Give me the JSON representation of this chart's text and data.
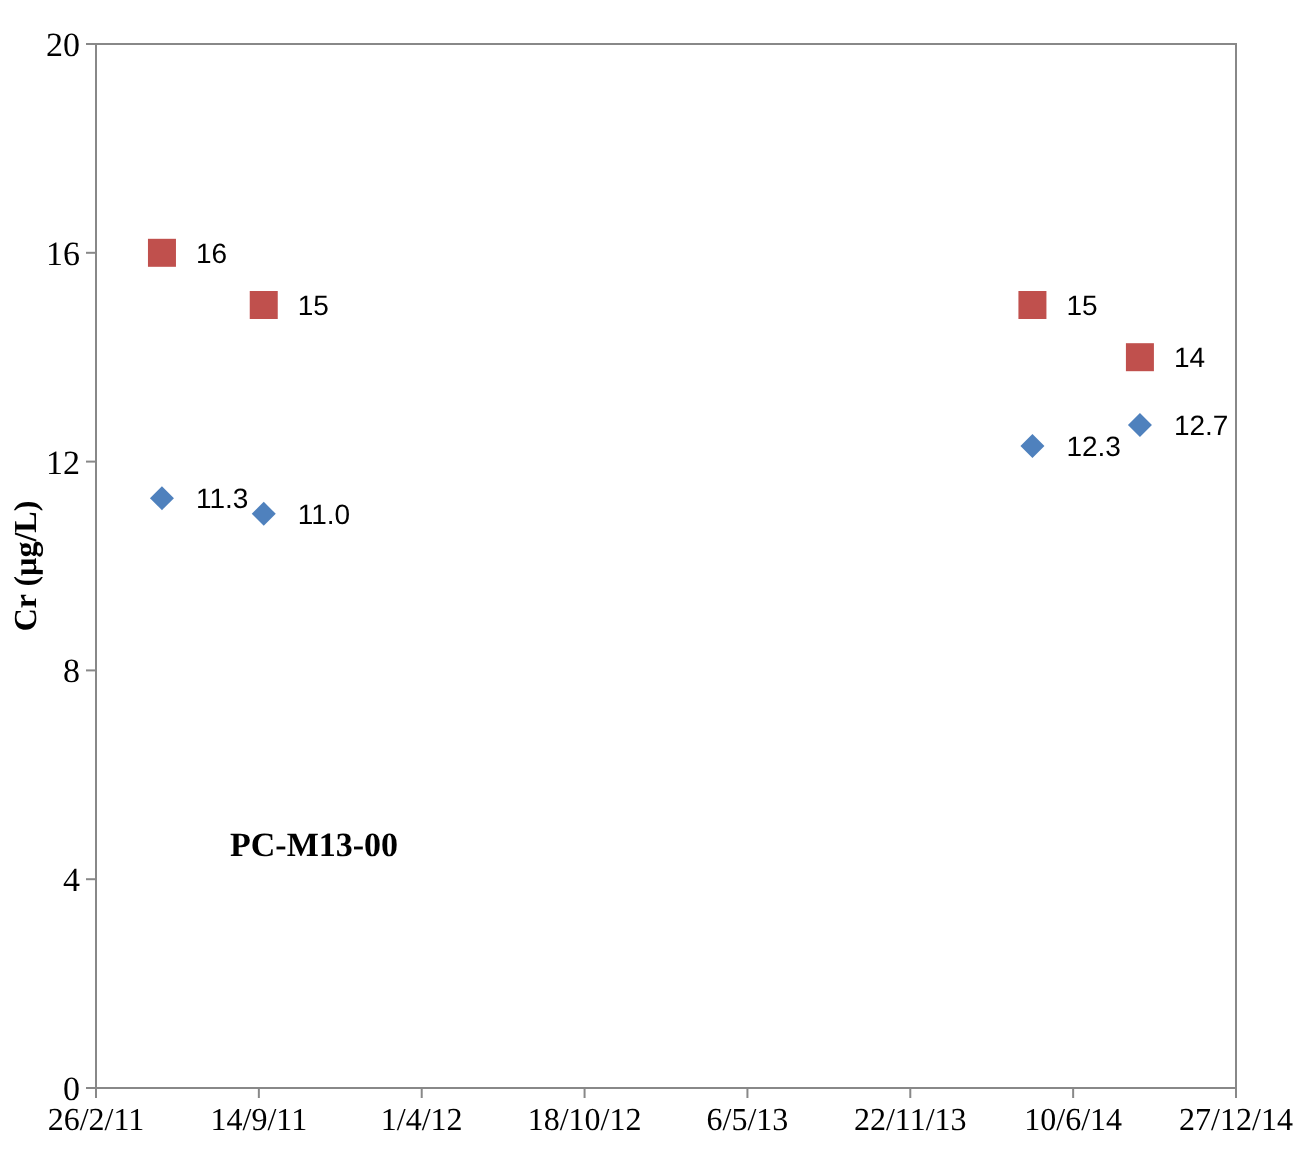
{
  "chart_data": {
    "type": "scatter",
    "ylabel": "Cr (µg/L)",
    "annotations": [
      "PC-M13-00"
    ],
    "x": [
      "2011-05-18",
      "2011-09-20",
      "2014-04-21",
      "2014-08-31"
    ],
    "series": [
      {
        "color": "#4f81bd",
        "marker": "diamond",
        "values": [
          11.3,
          11.0,
          12.3,
          12.7
        ],
        "value_labels": [
          "11.3",
          "11.0",
          "12.3",
          "12.7"
        ]
      },
      {
        "color": "#c0504d",
        "marker": "square",
        "values": [
          16,
          15,
          15,
          14
        ],
        "value_labels": [
          "16",
          "15",
          "15",
          "14"
        ]
      }
    ],
    "xlim": [
      "2011-02-26",
      "2014-12-27"
    ],
    "xticks": [
      {
        "value": "2011-02-26",
        "label": "26/2/11"
      },
      {
        "value": "2011-09-14",
        "label": "14/9/11"
      },
      {
        "value": "2012-04-01",
        "label": "1/4/12"
      },
      {
        "value": "2012-10-18",
        "label": "18/10/12"
      },
      {
        "value": "2013-05-06",
        "label": "6/5/13"
      },
      {
        "value": "2013-11-22",
        "label": "22/11/13"
      },
      {
        "value": "2014-06-10",
        "label": "10/6/14"
      },
      {
        "value": "2014-12-27",
        "label": "27/12/14"
      }
    ],
    "ylim": [
      0,
      20
    ],
    "yticks": [
      0,
      4,
      8,
      12,
      16,
      20
    ],
    "grid": false
  }
}
